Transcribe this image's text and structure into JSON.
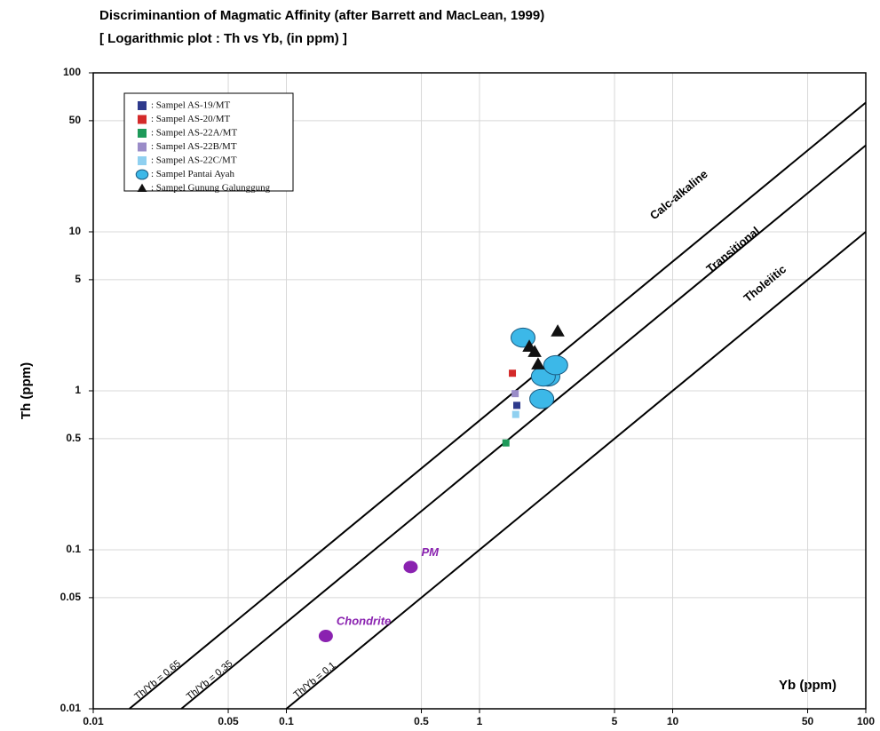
{
  "chart_data": {
    "type": "scatter",
    "title": "Discriminantion of Magmatic Affinity (after Barrett and MacLean, 1999)",
    "subtitle": "[ Logarithmic plot : Th vs Yb, (in ppm) ]",
    "x_label": "Yb (ppm)",
    "y_label": "Th (ppm)",
    "log_x": true,
    "log_y": true,
    "grid": true,
    "legend_position": "upper left",
    "xlim": [
      0.01,
      100
    ],
    "ylim": [
      0.01,
      100
    ],
    "xticks": [
      0.01,
      0.05,
      0.1,
      0.5,
      1,
      5,
      10,
      50,
      100
    ],
    "yticks": [
      0.01,
      0.05,
      0.1,
      0.5,
      1,
      5,
      10,
      50,
      100
    ],
    "lines": [
      {
        "name": "Calc-alkaline",
        "label": "Th/Yb = 0.65",
        "ratio": 0.65
      },
      {
        "name": "Transitional",
        "label": "Th/Yb = 0.35",
        "ratio": 0.35
      },
      {
        "name": "Tholeiitic",
        "label": "Th/Yb = 0.1",
        "ratio": 0.1
      }
    ],
    "series": [
      {
        "name": ": Sampel AS-19/MT",
        "color": "#2e3a8c",
        "marker": "square",
        "x": [
          1.56
        ],
        "values": [
          0.81
        ]
      },
      {
        "name": ": Sampel AS-20/MT",
        "color": "#d42a2a",
        "marker": "square",
        "x": [
          1.48
        ],
        "values": [
          1.29
        ]
      },
      {
        "name": ": Sampel AS-22A/MT",
        "color": "#1e9a5a",
        "marker": "square",
        "x": [
          1.37
        ],
        "values": [
          0.47
        ]
      },
      {
        "name": ": Sampel AS-22B/MT",
        "color": "#9a8cc8",
        "marker": "square",
        "x": [
          1.53
        ],
        "values": [
          0.96
        ]
      },
      {
        "name": ": Sampel AS-22C/MT",
        "color": "#8fd0f0",
        "marker": "square",
        "x": [
          1.54
        ],
        "values": [
          0.71
        ]
      },
      {
        "name": ": Sampel Pantai Ayah",
        "color": "#3cb8e8",
        "marker": "circle",
        "x": [
          1.68,
          2.26,
          2.14,
          2.1,
          2.48
        ],
        "values": [
          2.16,
          1.23,
          1.23,
          0.89,
          1.45
        ]
      },
      {
        "name": ": Sampel Gunung Galunggung",
        "color": "#111111",
        "marker": "triangle",
        "x": [
          1.81,
          1.93,
          2.01,
          2.54
        ],
        "values": [
          1.9,
          1.76,
          1.47,
          2.37
        ]
      }
    ],
    "reference": {
      "color": "#8a22b0",
      "points": [
        {
          "label": "PM",
          "x": 0.44,
          "value": 0.078
        },
        {
          "label": "Chondrite",
          "x": 0.16,
          "value": 0.0287
        }
      ]
    }
  }
}
